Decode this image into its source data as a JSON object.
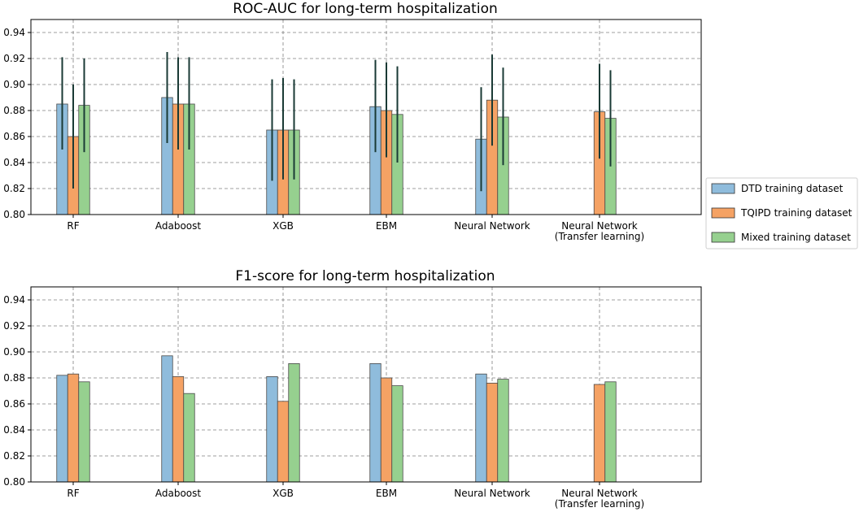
{
  "colors": {
    "dtd": "#8fbcdc",
    "tqipd": "#f5a264",
    "mixed": "#96d08f",
    "error": "#1a3a35",
    "grid": "#808080"
  },
  "legend": {
    "items": [
      "DTD training dataset",
      "TQIPD training dataset",
      "Mixed training dataset"
    ]
  },
  "chart_data": [
    {
      "type": "bar",
      "title": "ROC-AUC for long-term hospitalization",
      "categories": [
        "RF",
        "Adaboost",
        "XGB",
        "EBM",
        "Neural Network",
        "Neural Network (Transfer learning)"
      ],
      "category_labels": [
        [
          "RF"
        ],
        [
          "Adaboost"
        ],
        [
          "XGB"
        ],
        [
          "EBM"
        ],
        [
          "Neural Network"
        ],
        [
          "Neural Network",
          "(Transfer learning)"
        ]
      ],
      "ylim": [
        0.8,
        0.95
      ],
      "yticks": [
        "0.80",
        "0.82",
        "0.84",
        "0.86",
        "0.88",
        "0.90",
        "0.92",
        "0.94"
      ],
      "grid": true,
      "series": [
        {
          "name": "DTD training dataset",
          "values": [
            0.885,
            0.89,
            0.865,
            0.883,
            0.858,
            null
          ],
          "err_low": [
            0.85,
            0.855,
            0.826,
            0.848,
            0.818,
            null
          ],
          "err_high": [
            0.921,
            0.925,
            0.904,
            0.919,
            0.898,
            null
          ]
        },
        {
          "name": "TQIPD training dataset",
          "values": [
            0.86,
            0.885,
            0.865,
            0.88,
            0.888,
            0.879
          ],
          "err_low": [
            0.82,
            0.85,
            0.827,
            0.844,
            0.853,
            0.843
          ],
          "err_high": [
            0.9,
            0.921,
            0.905,
            0.917,
            0.923,
            0.916
          ]
        },
        {
          "name": "Mixed training dataset",
          "values": [
            0.884,
            0.885,
            0.865,
            0.877,
            0.875,
            0.874
          ],
          "err_low": [
            0.848,
            0.85,
            0.827,
            0.84,
            0.838,
            0.837
          ],
          "err_high": [
            0.92,
            0.921,
            0.904,
            0.914,
            0.913,
            0.911
          ]
        }
      ]
    },
    {
      "type": "bar",
      "title": "F1-score for long-term hospitalization",
      "categories": [
        "RF",
        "Adaboost",
        "XGB",
        "EBM",
        "Neural Network",
        "Neural Network (Transfer learning)"
      ],
      "category_labels": [
        [
          "RF"
        ],
        [
          "Adaboost"
        ],
        [
          "XGB"
        ],
        [
          "EBM"
        ],
        [
          "Neural Network"
        ],
        [
          "Neural Network",
          "(Transfer learning)"
        ]
      ],
      "ylim": [
        0.8,
        0.95
      ],
      "yticks": [
        "0.80",
        "0.82",
        "0.84",
        "0.86",
        "0.88",
        "0.90",
        "0.92",
        "0.94"
      ],
      "grid": true,
      "series": [
        {
          "name": "DTD training dataset",
          "values": [
            0.882,
            0.897,
            0.881,
            0.891,
            0.883,
            null
          ]
        },
        {
          "name": "TQIPD training dataset",
          "values": [
            0.883,
            0.881,
            0.862,
            0.88,
            0.876,
            0.875
          ]
        },
        {
          "name": "Mixed training dataset",
          "values": [
            0.877,
            0.868,
            0.891,
            0.874,
            0.879,
            0.877
          ]
        }
      ]
    }
  ]
}
